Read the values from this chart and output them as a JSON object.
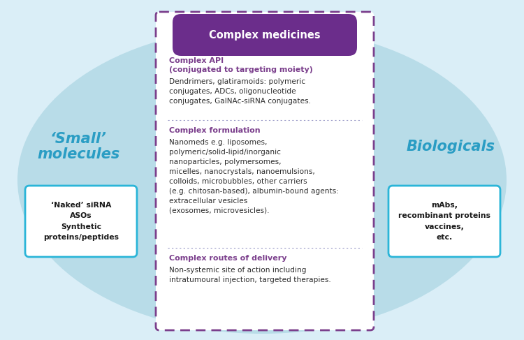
{
  "bg_color": "#daeef7",
  "ellipse_color": "#b8dce8",
  "box_bg": "#ffffff",
  "box_border_dashed": "#7b3f8c",
  "box_border_solid_cyan": "#2bb5d8",
  "header_bg": "#6b2d8b",
  "header_text": "Complex medicines",
  "header_text_color": "#ffffff",
  "small_mol_title": "‘Small’\nmolecules",
  "small_mol_color": "#2a9dc4",
  "small_mol_box_text": "‘Naked’ siRNA\nASOs\nSynthetic\nproteins/peptides",
  "bio_title": "Biologicals",
  "bio_color": "#2a9dc4",
  "bio_box_text": "mAbs,\nrecombinant proteins\nvaccines,\netc.",
  "section1_title": "Complex API\n(conjugated to targeting moiety)",
  "section1_title_color": "#7b3f8c",
  "section1_body": "Dendrimers, glatiramoids: polymeric\nconjugates, ADCs, oligonucleotide\nconjugates, GalNAc-siRNA conjugates.",
  "section1_body_color": "#2d2d2d",
  "section2_title": "Complex formulation",
  "section2_title_color": "#7b3f8c",
  "section2_body": "Nanomeds e.g. liposomes,\npolymeric/solid-lipid/inorganic\nnanoparticles, polymersomes,\nmicelles, nanocrystals, nanoemulsions,\ncolloids, microbubbles, other carriers\n(e.g. chitosan-based), albumin-bound agents:\nextracellular vesicles\n(exosomes, microvesicles).",
  "section2_body_color": "#2d2d2d",
  "section3_title": "Complex routes of delivery",
  "section3_title_color": "#7b3f8c",
  "section3_body": "Non-systemic site of action including\nintratumoural injection, targeted therapies.",
  "section3_body_color": "#2d2d2d",
  "divider_color": "#9b9bc8",
  "fig_width": 7.5,
  "fig_height": 4.87
}
